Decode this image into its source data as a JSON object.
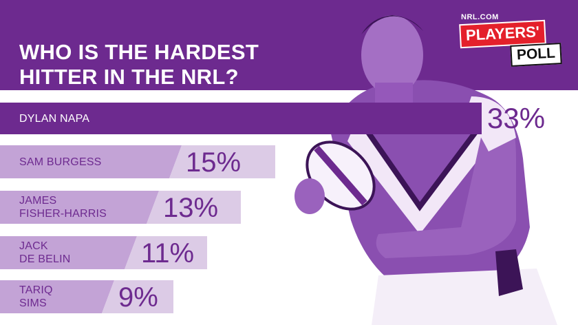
{
  "header": {
    "title": "WHO IS THE HARDEST HITTER IN THE NRL?"
  },
  "logo": {
    "site": "NRL.COM",
    "line1": "PLAYERS'",
    "line2": "POLL"
  },
  "colors": {
    "purple": "#6d2a8f",
    "light_lilac": "#dccbe6",
    "mid_lilac": "#c3a3d6",
    "red": "#e4202b"
  },
  "chart_data": {
    "type": "bar",
    "title": "WHO IS THE HARDEST HITTER IN THE NRL?",
    "categories": [
      "DYLAN NAPA",
      "SAM BURGESS",
      "JAMES FISHER-HARRIS",
      "JACK DE BELIN",
      "TARIQ SIMS"
    ],
    "label_lines": [
      [
        "DYLAN NAPA"
      ],
      [
        "SAM BURGESS"
      ],
      [
        "JAMES",
        "FISHER-HARRIS"
      ],
      [
        "JACK",
        "DE BELIN"
      ],
      [
        "TARIQ",
        "SIMS"
      ]
    ],
    "values": [
      33,
      15,
      13,
      11,
      9
    ],
    "value_labels": [
      "33%",
      "15%",
      "13%",
      "11%",
      "9%"
    ],
    "unit": "%"
  }
}
